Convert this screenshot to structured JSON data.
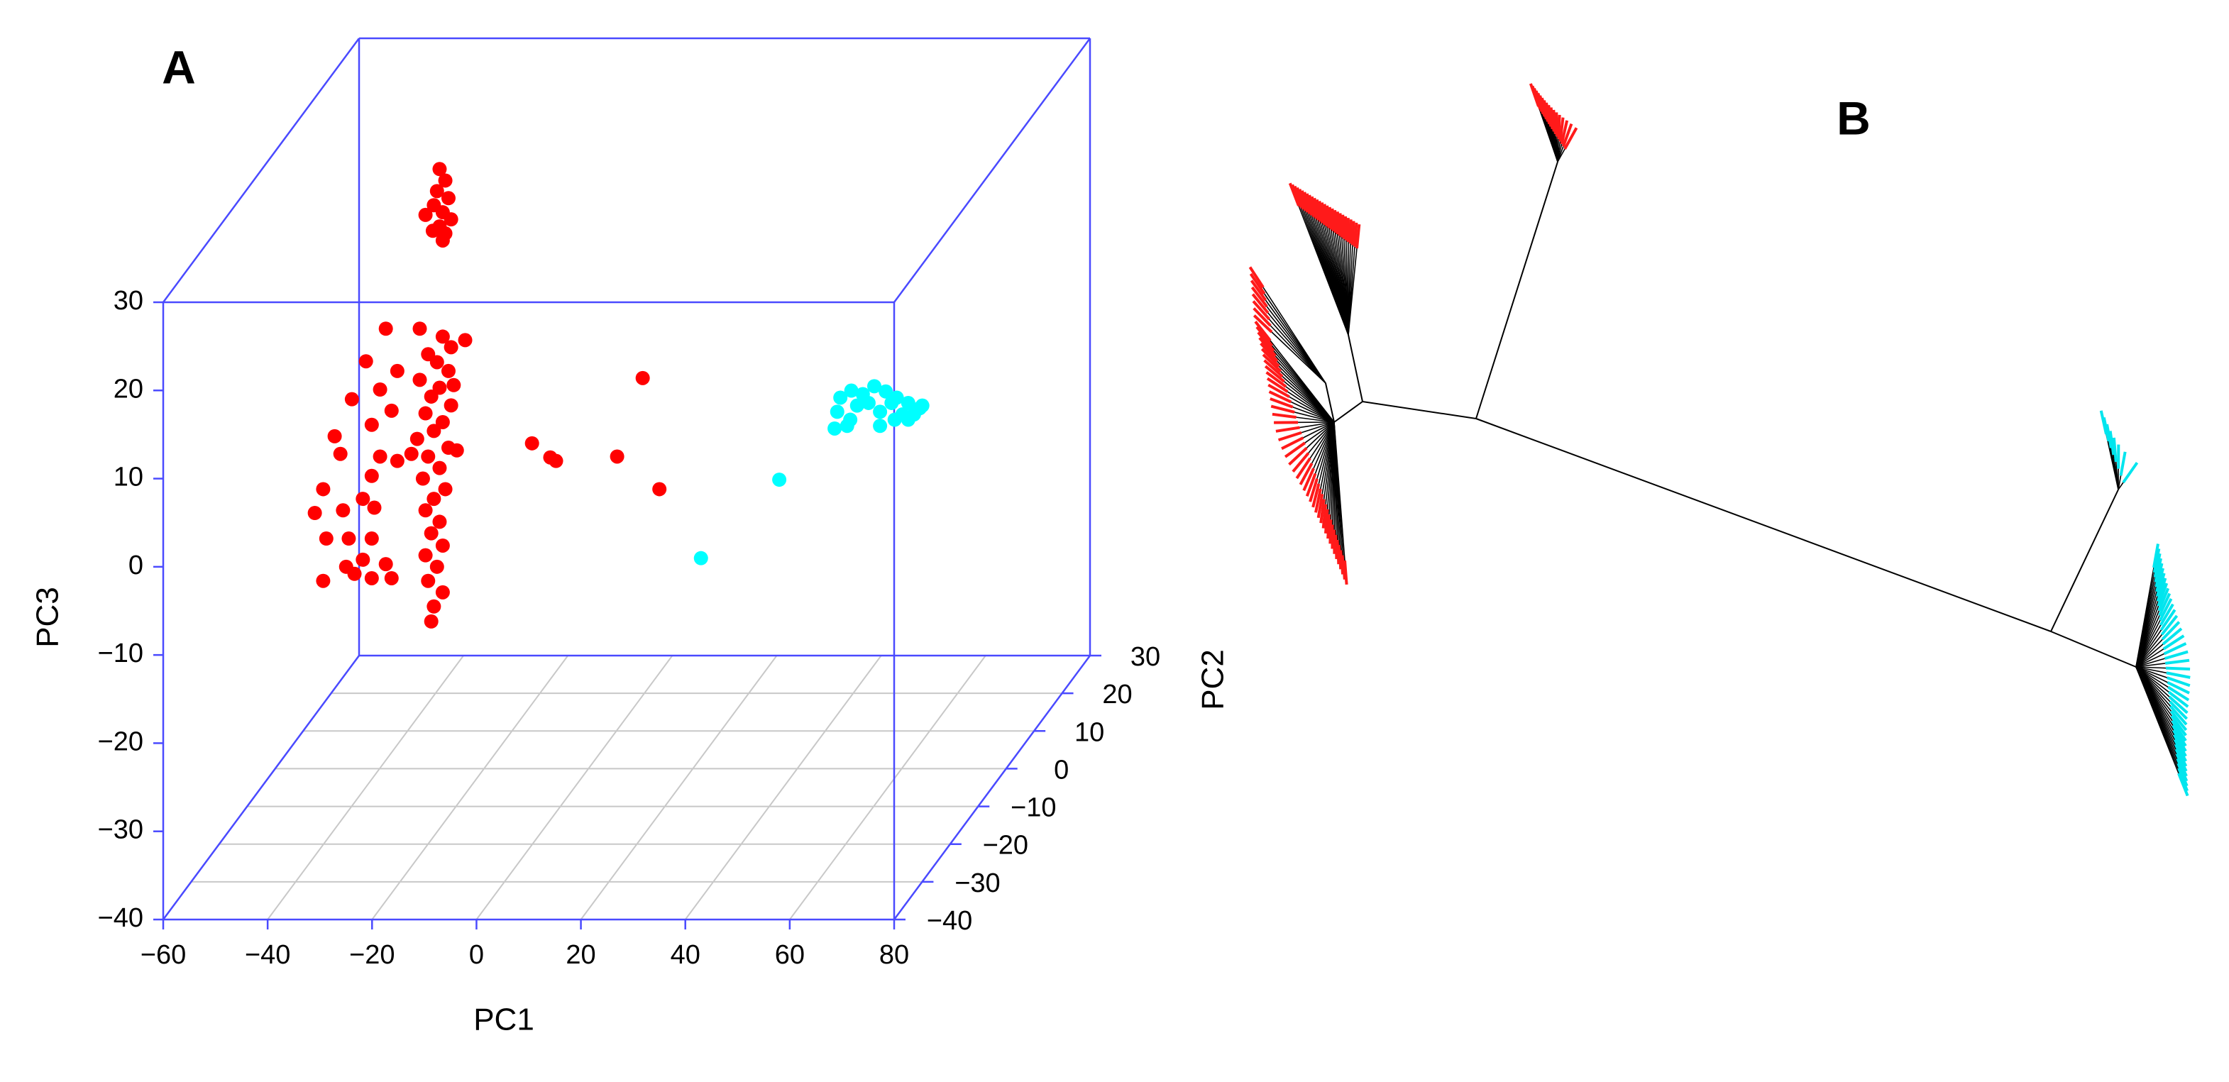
{
  "chart_data": [
    {
      "type": "scatter3d",
      "panel_label": "A",
      "x_label": "PC1",
      "y_label": "PC2",
      "z_label": "PC3",
      "xlim": [
        -60,
        80
      ],
      "ylim": [
        -40,
        30
      ],
      "zlim": [
        -40,
        30
      ],
      "xticks": [
        {
          "value": -60,
          "label": "−60"
        },
        {
          "value": -40,
          "label": "−40"
        },
        {
          "value": -20,
          "label": "−20"
        },
        0,
        20,
        40,
        60,
        80
      ],
      "yticks": [
        {
          "value": -40,
          "label": "−40"
        },
        {
          "value": -30,
          "label": "−30"
        },
        {
          "value": -20,
          "label": "−20"
        },
        {
          "value": -10,
          "label": "−10"
        },
        0,
        10,
        20,
        30
      ],
      "zticks": [
        {
          "value": -40,
          "label": "−40"
        },
        {
          "value": -30,
          "label": "−30"
        },
        {
          "value": -20,
          "label": "−20"
        },
        {
          "value": -10,
          "label": "−10"
        },
        0,
        10,
        20,
        30
      ],
      "grid": true,
      "box_color": "#4a4aff",
      "series": [
        {
          "color": "#ff0000",
          "x": [
            -28.5,
            -27.4,
            -29.0,
            -26.8,
            -29.6,
            -27.9,
            -31.2,
            -26.3,
            -28.5,
            -29.8,
            -27.4,
            -27.9,
            -32.3,
            -27.9,
            -26.3,
            -30.7,
            -29.0,
            -26.8,
            -32.3,
            -28.5,
            -30.1,
            -26.3,
            -31.2,
            -27.9,
            -29.6,
            -32.8,
            -26.8,
            -30.7,
            -28.5,
            -31.7,
            -27.4,
            -29.6,
            -31.2,
            -28.5,
            -30.1,
            -27.9,
            -31.2,
            -29.0,
            -30.7,
            -27.9,
            -29.6,
            -30.1,
            -33.9,
            -36.6,
            -25.2,
            -23.6,
            -25.8,
            -38.8,
            -42.6,
            -36.6,
            -39.9,
            -45.3,
            -37.7,
            -48.6,
            -41.5,
            -47.5,
            -39.9,
            -41.5,
            -50.8,
            -43.2,
            -41.0,
            -47.0,
            -52.4,
            -41.5,
            -45.9,
            -50.2,
            -43.2,
            -38.8,
            -46.4,
            -41.5,
            -37.7,
            -50.8,
            -44.8,
            -10.8,
            -7.3,
            -6.2,
            5.5,
            10.4,
            13.6
          ],
          "y": [
            0,
            0,
            0,
            0,
            0,
            0,
            0,
            0,
            0,
            0,
            0,
            0,
            0,
            0,
            0,
            0,
            0,
            0,
            0,
            0,
            0,
            0,
            0,
            0,
            0,
            0,
            0,
            0,
            0,
            0,
            0,
            0,
            0,
            0,
            0,
            0,
            0,
            0,
            0,
            0,
            0,
            0,
            0,
            0,
            0,
            0,
            0,
            0,
            0,
            0,
            0,
            0,
            0,
            0,
            0,
            0,
            0,
            0,
            0,
            0,
            0,
            0,
            0,
            0,
            0,
            0,
            0,
            0,
            0,
            0,
            0,
            0,
            0,
            0,
            0,
            0,
            0,
            0,
            0
          ],
          "z": [
            28.0,
            26.7,
            25.5,
            24.7,
            23.9,
            23.1,
            22.8,
            22.3,
            21.5,
            21.0,
            20.7,
            19.9,
            9.9,
            9.0,
            7.8,
            7.0,
            6.1,
            5.1,
            4.1,
            3.2,
            2.2,
            1.2,
            0.3,
            -0.7,
            -1.7,
            -2.6,
            -3.6,
            -4.6,
            -5.9,
            -7.1,
            -8.3,
            -9.4,
            -10.7,
            -12.0,
            -13.3,
            -14.7,
            -15.8,
            -17.1,
            -18.7,
            -20.0,
            -21.6,
            -23.3,
            -4.3,
            -5.1,
            -3.9,
            8.6,
            3.5,
            9.9,
            6.2,
            5.1,
            3.0,
            1.9,
            0.6,
            -2.3,
            -1.0,
            -4.3,
            -4.6,
            -6.8,
            -8.3,
            -9.4,
            -10.4,
            -10.7,
            -11.0,
            -13.9,
            -13.9,
            -13.9,
            -16.3,
            -16.8,
            -17.1,
            -18.4,
            -18.4,
            -18.7,
            -17.9,
            -3.1,
            -4.7,
            -5.1,
            -4.6,
            4.3,
            -8.3
          ]
        },
        {
          "color": "#00ffff",
          "x": [
            16.2,
            31.2,
            42.9,
            45.0,
            47.2,
            49.4,
            51.6,
            53.7,
            55.9,
            58.1,
            42.3,
            44.8,
            46.1,
            48.3,
            50.5,
            52.7,
            54.8,
            57.0,
            41.8,
            44.2,
            53.3,
            55.9,
            50.5,
            58.6
          ],
          "y": [
            10,
            10,
            10,
            10,
            10,
            10,
            10,
            10,
            10,
            10,
            10,
            10,
            10,
            10,
            10,
            10,
            10,
            10,
            10,
            10,
            10,
            10,
            10,
            10
          ],
          "z": [
            -20.4,
            -11.5,
            -2.2,
            -1.4,
            -1.8,
            -0.9,
            -1.5,
            -2.2,
            -2.8,
            -3.4,
            -3.8,
            -4.7,
            -3.1,
            -2.8,
            -3.8,
            -2.8,
            -4.1,
            -4.1,
            -5.7,
            -5.4,
            -4.7,
            -4.7,
            -5.4,
            -3.1
          ]
        }
      ]
    },
    {
      "type": "tree",
      "panel_label": "B"
    }
  ]
}
